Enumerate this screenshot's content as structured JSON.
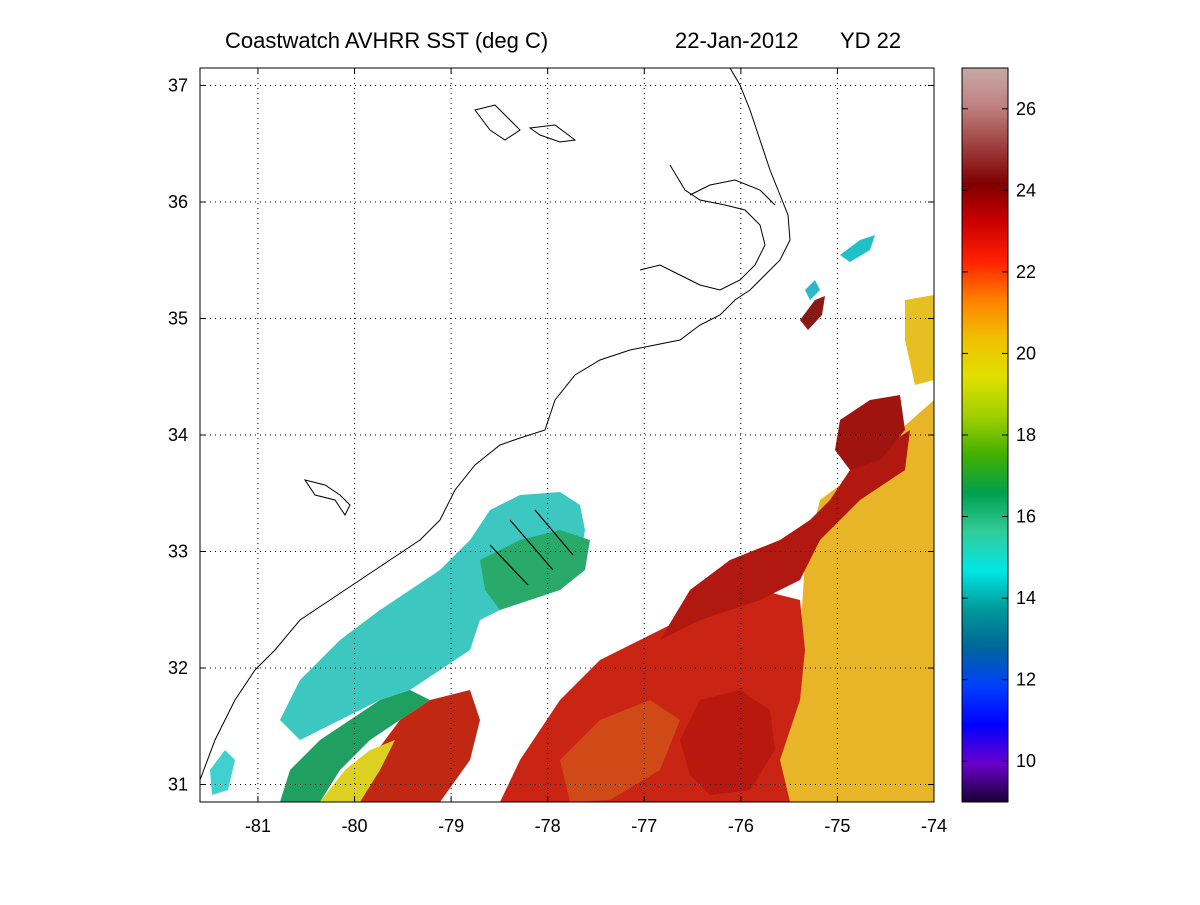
{
  "map": {
    "title": "Coastwatch   AVHRR   SST  (deg C)",
    "date": "22-Jan-2012",
    "yearday": "YD 22",
    "x_ticks": [
      "-81",
      "-80",
      "-79",
      "-78",
      "-77",
      "-76",
      "-75",
      "-74"
    ],
    "y_ticks": [
      "37",
      "36",
      "35",
      "34",
      "33",
      "32",
      "31"
    ],
    "lon_range": [
      -81.6,
      -74
    ],
    "lat_range": [
      30.85,
      37.15
    ],
    "grid": "dotted",
    "colorbar": {
      "range": [
        9,
        27
      ],
      "ticks": [
        "10",
        "12",
        "14",
        "16",
        "18",
        "20",
        "22",
        "24",
        "26"
      ],
      "colors": [
        "#1a0033",
        "#6a00cc",
        "#0000ff",
        "#0040ff",
        "#006699",
        "#009999",
        "#00e6e6",
        "#33cc99",
        "#00a050",
        "#44b000",
        "#a0d000",
        "#e0e000",
        "#f0c000",
        "#ff8000",
        "#ff2000",
        "#cc0000",
        "#800000",
        "#a04040",
        "#c08080",
        "#c8a8a8"
      ]
    },
    "sst_palette": {
      "cool_shelf": "#3ac6bf",
      "shelf_edge": "#1fb06a",
      "gulf_stream": "#c81e12",
      "warm_offshore": "#e6b022"
    }
  }
}
